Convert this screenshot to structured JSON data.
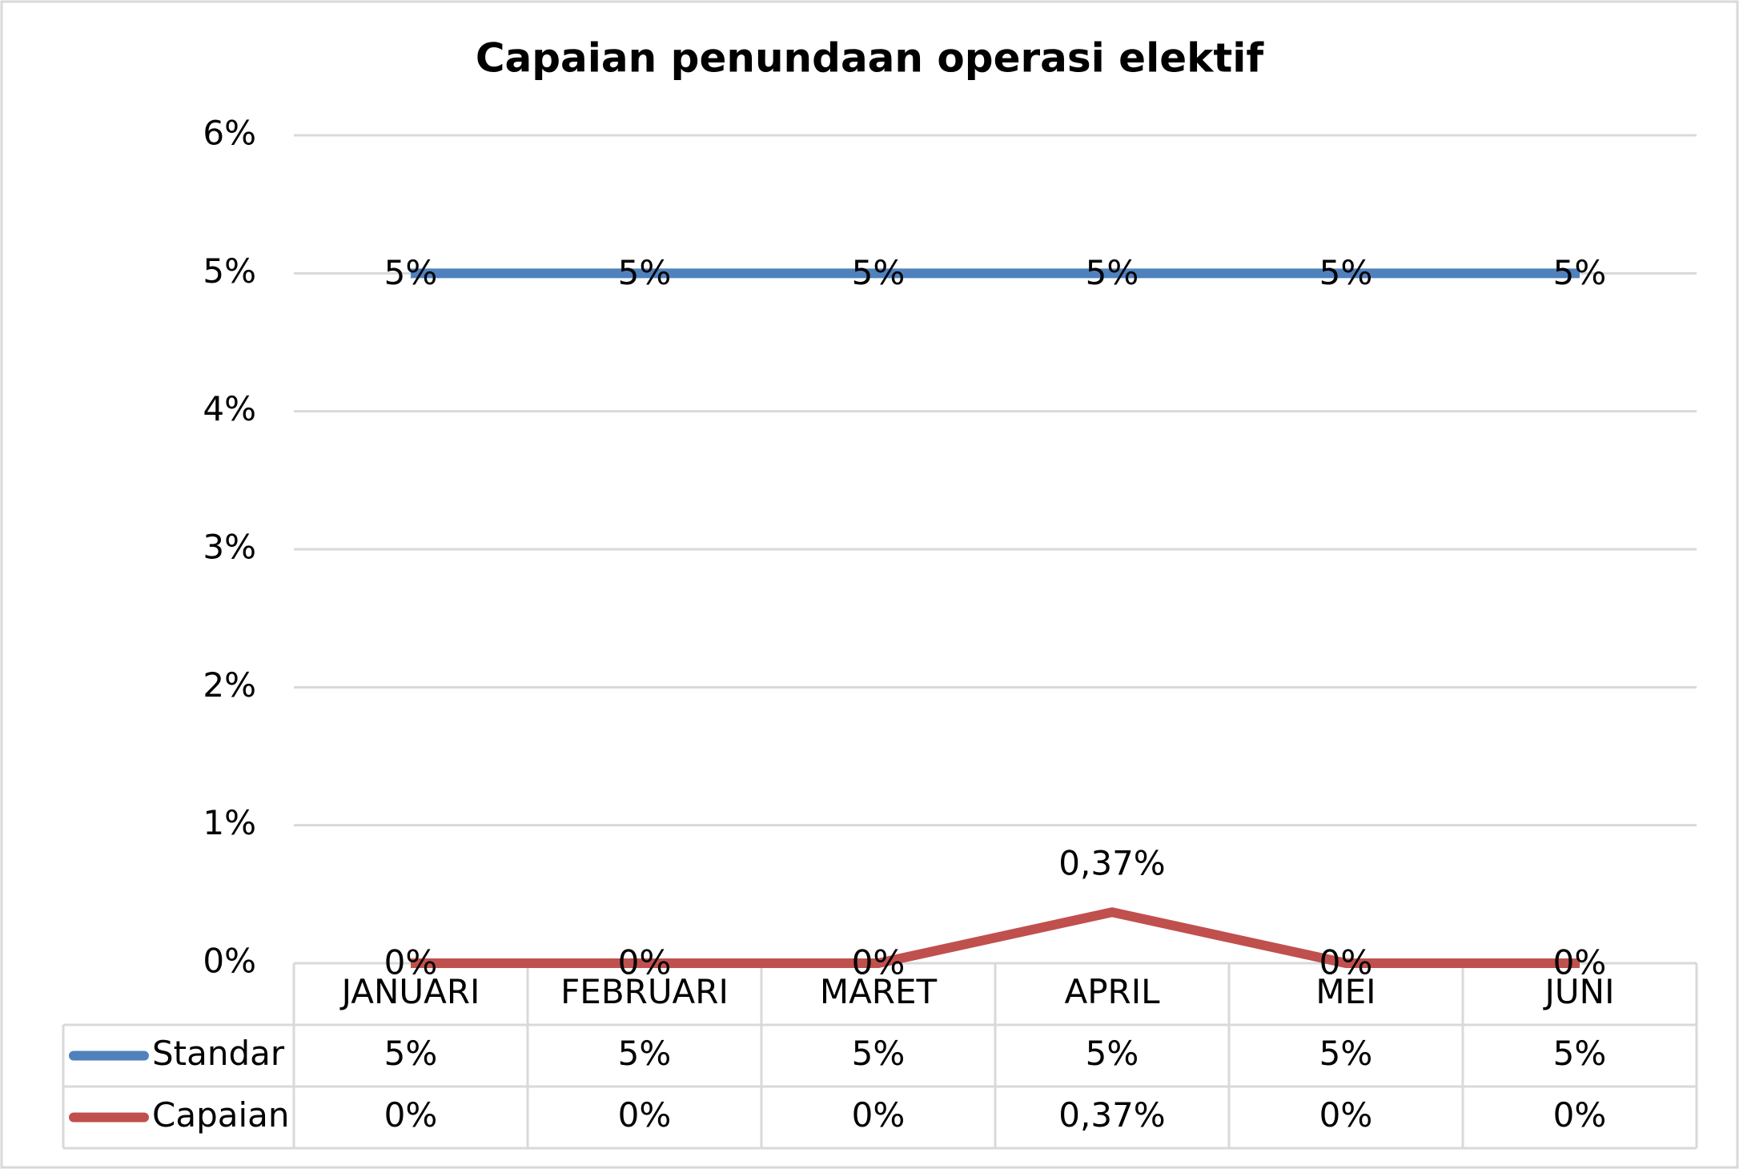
{
  "chart_data": {
    "type": "line",
    "title": "Capaian penundaan operasi elektif",
    "categories": [
      "JANUARI",
      "FEBRUARI",
      "MARET",
      "APRIL",
      "MEI",
      "JUNI"
    ],
    "series": [
      {
        "name": "Standar",
        "color": "#4f81bd",
        "values": [
          5,
          5,
          5,
          5,
          5,
          5
        ],
        "value_labels": [
          "5%",
          "5%",
          "5%",
          "5%",
          "5%",
          "5%"
        ]
      },
      {
        "name": "Capaian",
        "color": "#c0504d",
        "values": [
          0,
          0,
          0,
          0.37,
          0,
          0
        ],
        "value_labels": [
          "0%",
          "0%",
          "0%",
          "0,37%",
          "0%",
          "0%"
        ]
      }
    ],
    "ylim": [
      0,
      6
    ],
    "yticks": [
      {
        "value": 0,
        "label": "0%"
      },
      {
        "value": 1,
        "label": "1%"
      },
      {
        "value": 2,
        "label": "2%"
      },
      {
        "value": 3,
        "label": "3%"
      },
      {
        "value": 4,
        "label": "4%"
      },
      {
        "value": 5,
        "label": "5%"
      },
      {
        "value": 6,
        "label": "6%"
      }
    ],
    "grid": true,
    "data_table": true
  }
}
